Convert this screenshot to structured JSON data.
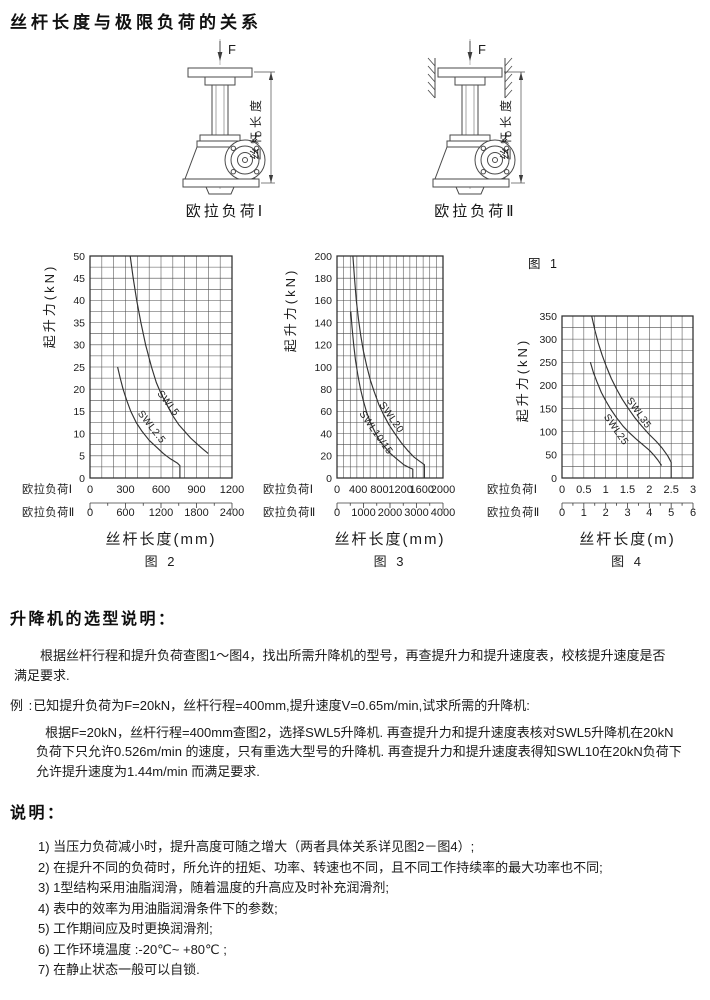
{
  "page": {
    "title": "丝杆长度与极限负荷的关系"
  },
  "figure1": {
    "label": "图 1",
    "force_label": "F",
    "dim_label": "丝杆长度",
    "captions": {
      "left": "欧拉负荷Ⅰ",
      "right": "欧拉负荷Ⅱ"
    }
  },
  "chart_data": [
    {
      "name": "图 2",
      "type": "line",
      "title": "",
      "ylabel": "起升力(kN)",
      "xlabel": "丝杆长度(mm)",
      "ylim": [
        0,
        50
      ],
      "ytick_step": 5,
      "ygrid_step": 2.5,
      "xlim": [
        0,
        1200
      ],
      "xgrid_step": 100,
      "grid": "on",
      "x_scales": [
        {
          "label": "欧拉负荷Ⅰ",
          "ticks": [
            0,
            300,
            600,
            900,
            1200
          ]
        },
        {
          "label": "欧拉负荷Ⅱ",
          "ticks": [
            0,
            600,
            1200,
            1800,
            2400
          ]
        }
      ],
      "series": [
        {
          "name": "SWL5",
          "points": [
            [
              340,
              50
            ],
            [
              365,
              45
            ],
            [
              395,
              40
            ],
            [
              430,
              35
            ],
            [
              470,
              30
            ],
            [
              520,
              25
            ],
            [
              560,
              21.5
            ],
            [
              600,
              19
            ],
            [
              650,
              16.5
            ],
            [
              700,
              14
            ],
            [
              750,
              12
            ],
            [
              800,
              10.5
            ],
            [
              850,
              9
            ],
            [
              900,
              7.8
            ],
            [
              950,
              6.6
            ],
            [
              1000,
              5.5
            ]
          ],
          "label_at": [
            565,
            19
          ],
          "label_rot": 52
        },
        {
          "name": "SWL2.5",
          "points": [
            [
              233,
              25
            ],
            [
              255,
              22.5
            ],
            [
              280,
              20
            ],
            [
              310,
              17.5
            ],
            [
              345,
              15
            ],
            [
              390,
              12.5
            ],
            [
              440,
              10.5
            ],
            [
              500,
              8.5
            ],
            [
              560,
              7
            ],
            [
              620,
              5.5
            ],
            [
              680,
              4.3
            ],
            [
              740,
              3.3
            ],
            [
              760,
              2.8
            ],
            [
              760,
              0
            ]
          ],
          "label_at": [
            400,
            14.5
          ],
          "label_rot": 52
        }
      ]
    },
    {
      "name": "图 3",
      "type": "line",
      "title": "",
      "ylabel": "起升力(kN)",
      "xlabel": "丝杆长度(mm)",
      "ylim": [
        0,
        200
      ],
      "ytick_step": 20,
      "ygrid_step": 10,
      "xlim": [
        0,
        2000
      ],
      "xgrid_step": 125,
      "grid": "on",
      "x_scales": [
        {
          "label": "欧拉负荷Ⅰ",
          "ticks": [
            0,
            400,
            800,
            1200,
            1600,
            2000
          ]
        },
        {
          "label": "欧拉负荷Ⅱ",
          "ticks": [
            0,
            1000,
            2000,
            3000,
            4000
          ]
        }
      ],
      "series": [
        {
          "name": "SWL20",
          "points": [
            [
              300,
              200
            ],
            [
              330,
              180
            ],
            [
              365,
              160
            ],
            [
              405,
              143
            ],
            [
              450,
              128
            ],
            [
              500,
              114
            ],
            [
              560,
              101
            ],
            [
              630,
              88
            ],
            [
              700,
              78
            ],
            [
              790,
              66
            ],
            [
              880,
              57
            ],
            [
              980,
              48
            ],
            [
              1090,
              40
            ],
            [
              1210,
              32
            ],
            [
              1330,
              25
            ],
            [
              1450,
              19
            ],
            [
              1560,
              15
            ],
            [
              1650,
              12
            ],
            [
              1650,
              0
            ]
          ],
          "label_at": [
            790,
            66
          ],
          "label_rot": 55
        },
        {
          "name": "SWL10/15",
          "points": [
            [
              260,
              150
            ],
            [
              285,
              135
            ],
            [
              315,
              120
            ],
            [
              350,
              106
            ],
            [
              392,
              93
            ],
            [
              440,
              81
            ],
            [
              495,
              70
            ],
            [
              560,
              59
            ],
            [
              630,
              50
            ],
            [
              710,
              42
            ],
            [
              800,
              34
            ],
            [
              900,
              28
            ],
            [
              1010,
              22
            ],
            [
              1130,
              17
            ],
            [
              1260,
              12
            ],
            [
              1380,
              9
            ],
            [
              1430,
              8
            ],
            [
              1430,
              0
            ]
          ],
          "label_at": [
            415,
            58
          ],
          "label_rot": 55
        }
      ]
    },
    {
      "name": "图 4",
      "type": "line",
      "title": "",
      "ylabel": "起升力(kN)",
      "xlabel": "丝杆长度(m)",
      "ylim": [
        0,
        350
      ],
      "ytick_step": 50,
      "ygrid_step": 25,
      "xlim": [
        0,
        3
      ],
      "xgrid_step": 0.25,
      "grid": "on",
      "x_scales": [
        {
          "label": "欧拉负荷Ⅰ",
          "ticks": [
            0,
            0.5,
            1,
            1.5,
            2,
            2.5,
            3
          ]
        },
        {
          "label": "欧拉负荷Ⅱ",
          "ticks": [
            0,
            1,
            2,
            3,
            4,
            5,
            6
          ]
        }
      ],
      "series": [
        {
          "name": "SWL35",
          "points": [
            [
              0.68,
              350
            ],
            [
              0.75,
              320
            ],
            [
              0.83,
              292
            ],
            [
              0.92,
              265
            ],
            [
              1.02,
              240
            ],
            [
              1.13,
              215
            ],
            [
              1.25,
              192
            ],
            [
              1.38,
              170
            ],
            [
              1.52,
              150
            ],
            [
              1.67,
              130
            ],
            [
              1.83,
              112
            ],
            [
              2.0,
              94
            ],
            [
              2.15,
              80
            ],
            [
              2.3,
              64
            ],
            [
              2.42,
              48
            ],
            [
              2.5,
              34
            ],
            [
              2.5,
              0
            ]
          ],
          "label_at": [
            1.47,
            168
          ],
          "label_rot": 55
        },
        {
          "name": "SWL25",
          "points": [
            [
              0.65,
              250
            ],
            [
              0.72,
              228
            ],
            [
              0.8,
              208
            ],
            [
              0.9,
              185
            ],
            [
              1.0,
              167
            ],
            [
              1.12,
              148
            ],
            [
              1.25,
              130
            ],
            [
              1.4,
              112
            ],
            [
              1.55,
              97
            ],
            [
              1.7,
              84
            ],
            [
              1.85,
              72
            ],
            [
              2.0,
              60
            ],
            [
              2.1,
              50
            ],
            [
              2.2,
              38
            ],
            [
              2.28,
              27
            ]
          ],
          "label_at": [
            0.95,
            132
          ],
          "label_rot": 55
        }
      ]
    }
  ],
  "selection": {
    "heading": "升降机的选型说明：",
    "para1": "根据丝杆行程和提升负荷查图1～图4，找出所需升降机的型号，再查提升力和提升速度表，校核提升速度是否满足要求.",
    "example_label": "例 :",
    "example_intro": "已知提升负荷为F=20kN，丝杆行程=400mm,提升速度V=0.65m/min,试求所需的升降机:",
    "example_body": "根据F=20kN，丝杆行程=400mm查图2，选择SWL5升降机. 再查提升力和提升速度表核对SWL5升降机在20kN负荷下只允许0.526m/min 的速度，只有重选大型号的升降机. 再查提升力和提升速度表得知SWL10在20kN负荷下允许提升速度为1.44m/min 而满足要求."
  },
  "notes": {
    "heading": "说明：",
    "items": [
      "1) 当压力负荷减小时，提升高度可随之增大（两者具体关系详见图2－图4）;",
      "2) 在提升不同的负荷时，所允许的扭矩、功率、转速也不同，且不同工作持续率的最大功率也不同;",
      "3) 1型结构采用油脂润滑，随着温度的升高应及时补充润滑剂;",
      "4) 表中的效率为用油脂润滑条件下的参数;",
      "5) 工作期间应及时更换润滑剂;",
      "6) 工作环境温度 :-20℃~ +80℃ ;",
      "7) 在静止状态一般可以自锁."
    ]
  }
}
